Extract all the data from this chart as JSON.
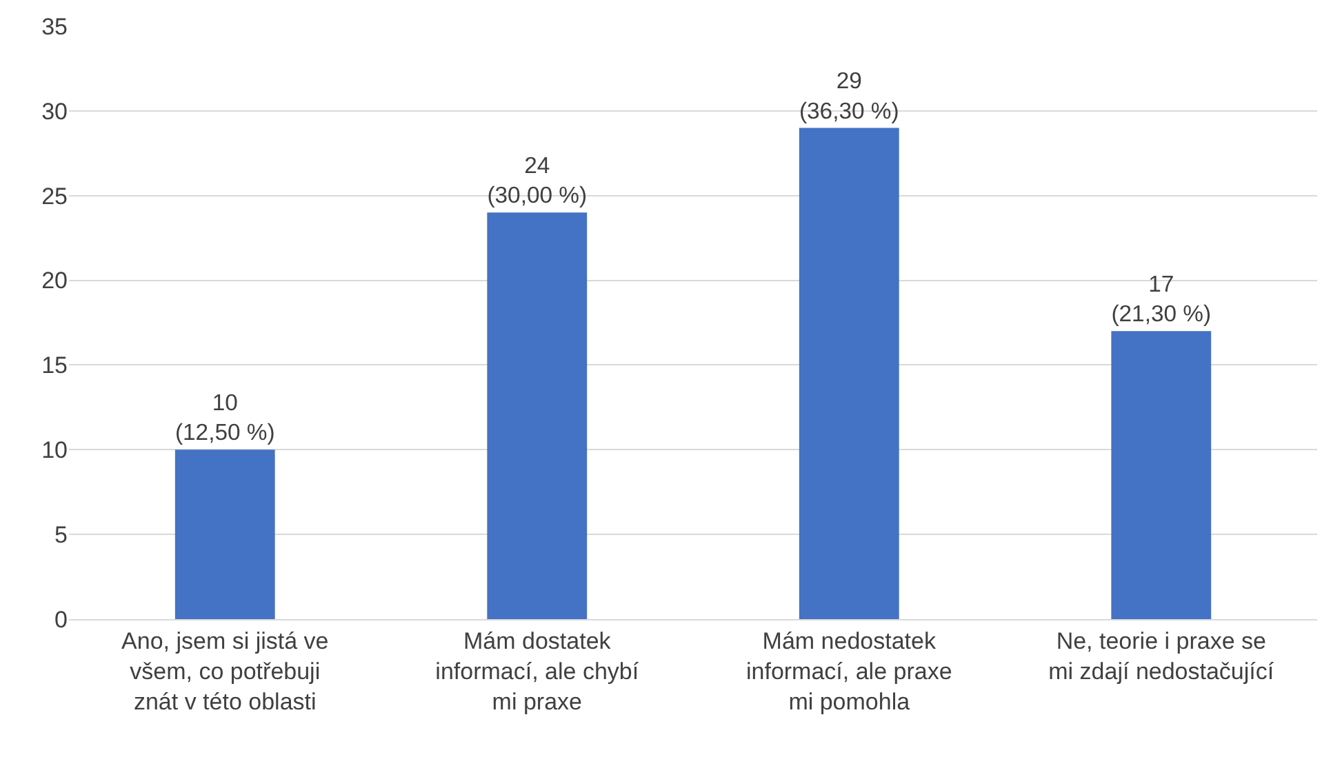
{
  "chart_data": {
    "type": "bar",
    "categories": [
      "Ano, jsem si jistá ve všem, co potřebuji znát v této oblasti",
      "Mám dostatek informací, ale chybí mi praxe",
      "Mám nedostatek informací, ale praxe mi pomohla",
      "Ne, teorie i praxe se mi zdají nedostačující"
    ],
    "values": [
      10,
      24,
      29,
      17
    ],
    "value_labels": [
      "10\n(12,50 %)",
      "24\n(30,00 %)",
      "29\n(36,30 %)",
      "17\n(21,30 %)"
    ],
    "color": "#4472c4",
    "ylim": [
      0,
      35
    ],
    "yticks": [
      0,
      5,
      10,
      15,
      20,
      25,
      30,
      35
    ],
    "grid": "y"
  }
}
